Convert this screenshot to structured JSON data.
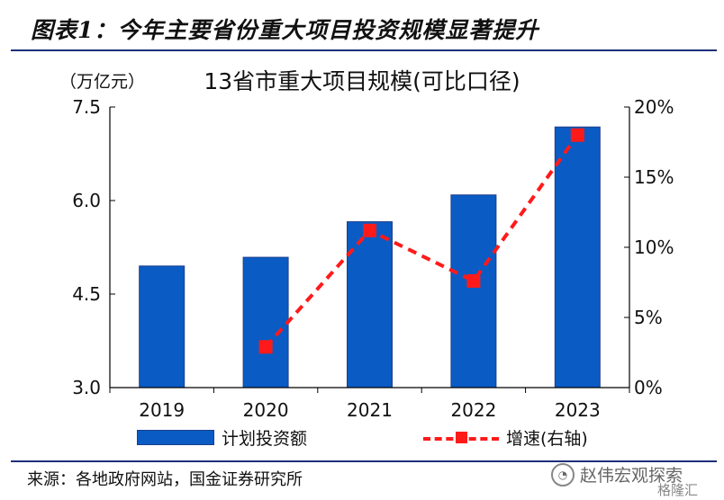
{
  "figure": {
    "title": "图表1：今年主要省份重大项目投资规模显著提升",
    "unit_label": "（万亿元）",
    "source": "来源：各地政府网站，国金证券研究所",
    "watermark": "赵伟宏观探索",
    "watermark_sub": "格隆汇"
  },
  "chart_data": {
    "type": "bar",
    "title": "13省市重大项目规模(可比口径)",
    "categories": [
      "2019",
      "2020",
      "2021",
      "2022",
      "2023"
    ],
    "series": [
      {
        "name": "计划投资额",
        "type": "bar",
        "axis": "left",
        "values": [
          4.95,
          5.09,
          5.66,
          6.09,
          7.18
        ]
      },
      {
        "name": "增速(右轴)",
        "type": "line",
        "axis": "right",
        "values": [
          null,
          2.9,
          11.2,
          7.6,
          18.0
        ]
      }
    ],
    "y_left": {
      "min": 3.0,
      "max": 7.5,
      "ticks": [
        "3.0",
        "4.5",
        "6.0",
        "7.5"
      ]
    },
    "y_right": {
      "min": 0,
      "max": 20,
      "ticks": [
        "0%",
        "5%",
        "10%",
        "15%",
        "20%"
      ]
    },
    "grid": false,
    "legend_position": "bottom",
    "colors": {
      "bar": "#0a5bc4",
      "bar_edge": "#1e3f8a",
      "line": "#ff1a1a"
    }
  }
}
